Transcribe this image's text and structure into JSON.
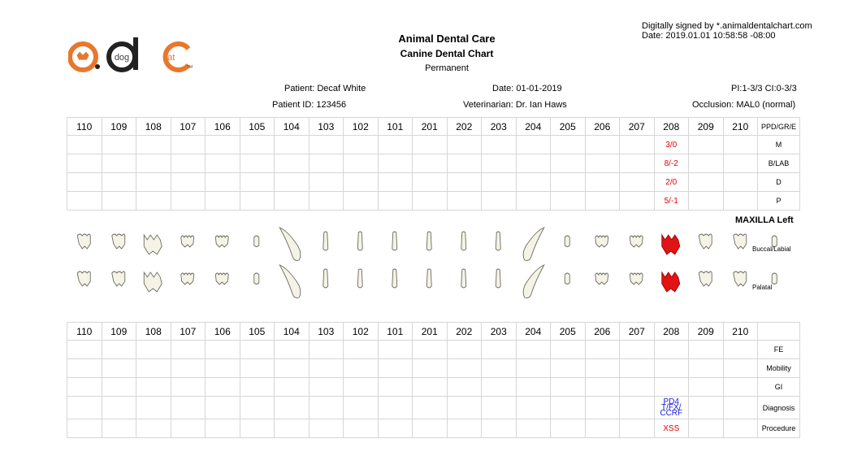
{
  "signature": {
    "line1": "Digitally signed by *.animaldentalchart.com",
    "line2": "Date: 2019.01.01 10:58:58 -08:00"
  },
  "logo": {
    "left": "dog",
    "right": "cat",
    "tm": "TM",
    "brand_color": "#e8772e"
  },
  "header": {
    "title": "Animal Dental Care",
    "subtitle": "Canine Dental Chart",
    "dentition": "Permanent"
  },
  "patient": {
    "name": "Patient: Decaf White",
    "id": "Patient ID: 123456",
    "date": "Date: 01-01-2019",
    "veterinarian": "Veterinarian: Dr. Ian Haws",
    "pi_ci": "PI:1-3/3  CI:0-3/3",
    "occlusion": "Occlusion: MAL0 (normal)"
  },
  "teeth": [
    "110",
    "109",
    "108",
    "107",
    "106",
    "105",
    "104",
    "103",
    "102",
    "101",
    "201",
    "202",
    "203",
    "204",
    "205",
    "206",
    "207",
    "208",
    "209",
    "210"
  ],
  "top_table": {
    "rows": [
      {
        "label": "PPD/GR/E",
        "marks": {
          "208": ""
        }
      },
      {
        "label": "M",
        "marks": {
          "208": "3/0"
        }
      },
      {
        "label": "B/LAB",
        "marks": {
          "208": "8/-2"
        }
      },
      {
        "label": "D",
        "marks": {
          "208": "2/0"
        }
      },
      {
        "label": "P",
        "marks": {
          "208": "5/-1"
        }
      }
    ]
  },
  "maxilla_label": "MAXILLA Left",
  "view_labels": {
    "buccal": "Buccal/Labial",
    "palatal": "Palatal"
  },
  "highlight_tooth": "208",
  "colors": {
    "highlight": "#e01414",
    "tooth_fill": "#f4f3e6",
    "tooth_stroke": "#6b6b60",
    "mark_red": "#e00000",
    "mark_blue": "#1a1ad0"
  },
  "bottom_table": {
    "rows": [
      {
        "label": "FE",
        "marks": {}
      },
      {
        "label": "Mobility",
        "marks": {}
      },
      {
        "label": "GI",
        "marks": {}
      },
      {
        "label": "Diagnosis",
        "marks": {
          "208": "PD4 T/FX/ CCRF"
        }
      },
      {
        "label": "Procedure",
        "marks": {
          "208": "XSS"
        }
      }
    ]
  }
}
